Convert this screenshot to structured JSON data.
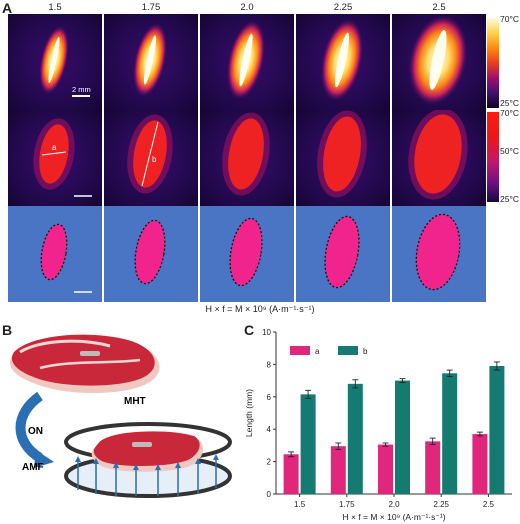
{
  "panels": {
    "A": "A",
    "B": "B",
    "C": "C"
  },
  "columns": [
    "1.5",
    "1.75",
    "2.0",
    "2.25",
    "2.5"
  ],
  "colorbar_top": {
    "max": "70°C",
    "min": "25°C"
  },
  "colorbar_mid": {
    "max": "70°C",
    "mid": "50°C",
    "min": "25°C"
  },
  "scale_bar_label": "2 mm",
  "dim_labels": {
    "a": "a",
    "b": "b"
  },
  "formula_a": "H × f = M × 10⁹ (A·m⁻¹·s⁻¹)",
  "panel_b": {
    "mht": "MHT",
    "on": "ON",
    "amf": "AMF"
  },
  "colors": {
    "a": "#e0267d",
    "b": "#147a72",
    "blue_tile": "#4a74c4",
    "hot": "#fff6b0"
  },
  "chart_data": {
    "type": "bar",
    "categories": [
      "1.5",
      "1.75",
      "2.0",
      "2.25",
      "2.5"
    ],
    "series": [
      {
        "name": "a",
        "values": [
          2.45,
          2.95,
          3.05,
          3.25,
          3.7
        ],
        "errors": [
          0.15,
          0.2,
          0.1,
          0.2,
          0.12
        ]
      },
      {
        "name": "b",
        "values": [
          6.15,
          6.8,
          7.0,
          7.45,
          7.9
        ],
        "errors": [
          0.25,
          0.25,
          0.12,
          0.2,
          0.25
        ]
      }
    ],
    "ylabel": "Length (mm)",
    "xlabel": "H × f = M × 10⁹ (A·m⁻¹·s⁻¹)",
    "ylim": [
      0,
      10
    ],
    "yticks": [
      "0",
      "2",
      "4",
      "6",
      "8",
      "10"
    ],
    "legend_placement": "top-left",
    "grid": false
  }
}
